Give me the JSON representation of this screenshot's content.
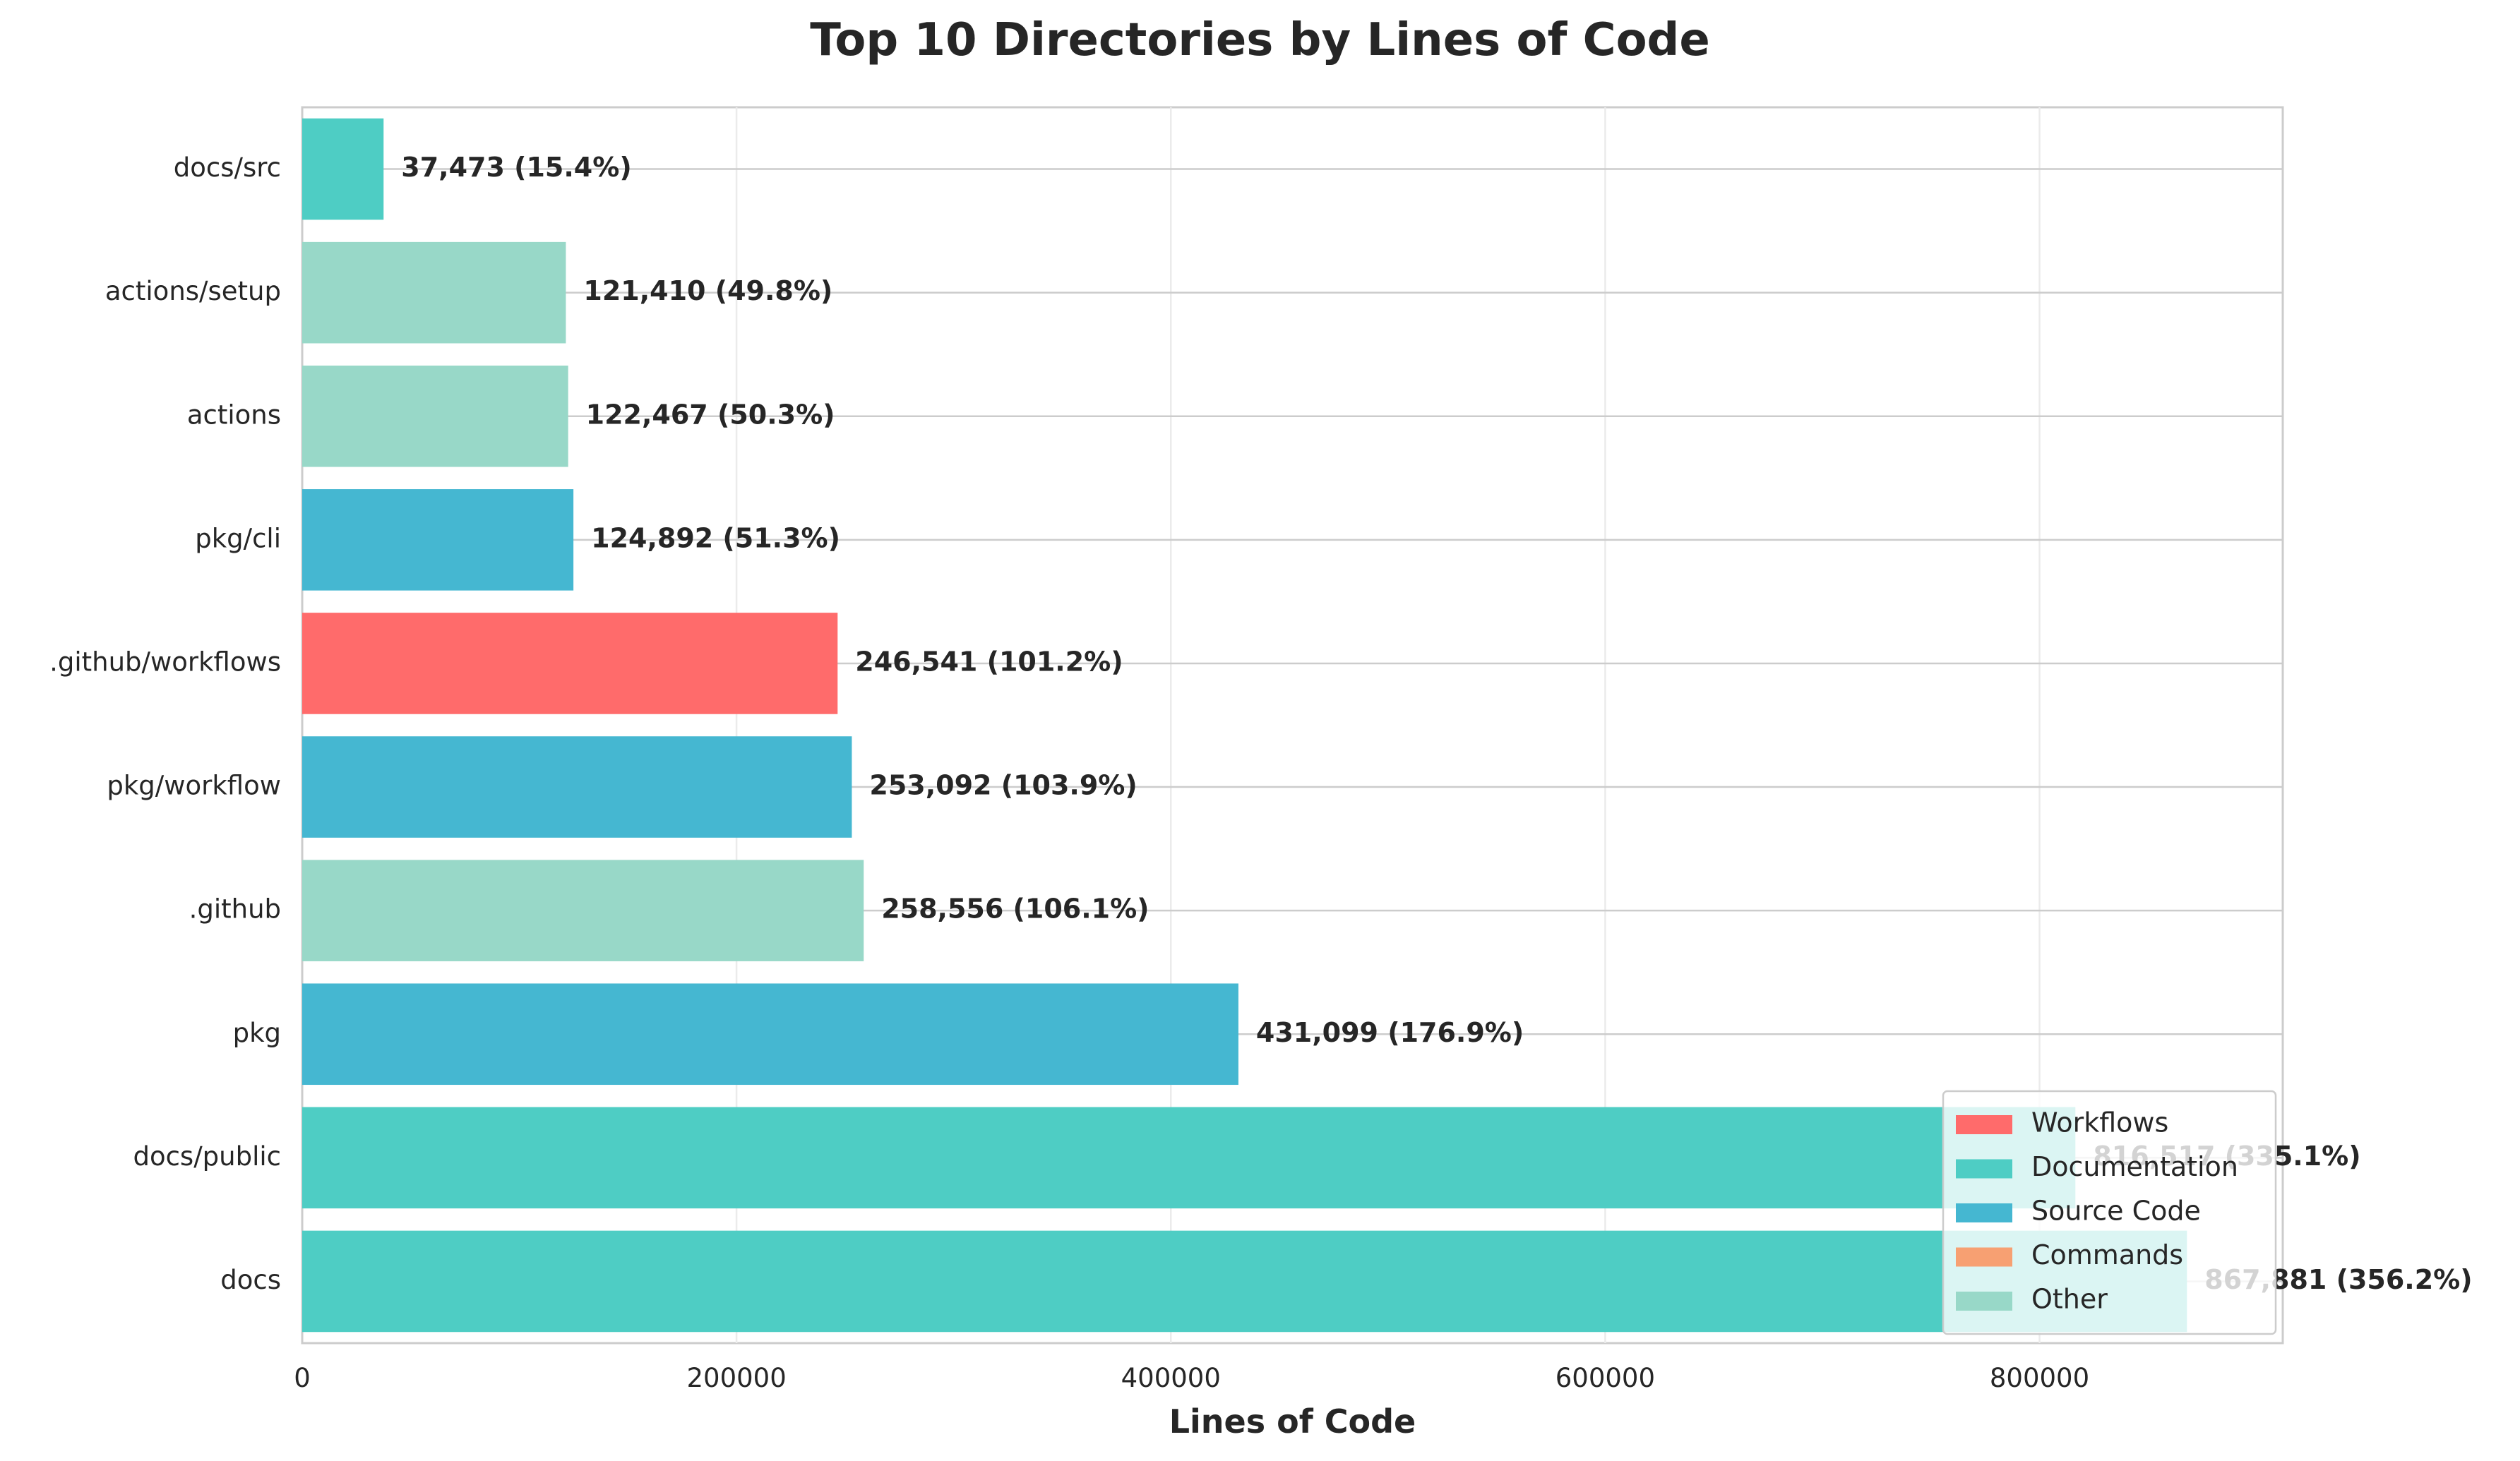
{
  "chart_data": {
    "type": "bar",
    "orientation": "horizontal",
    "title": "Top 10 Directories by Lines of Code",
    "xlabel": "Lines of Code",
    "ylabel": "",
    "xlim": [
      0,
      912000
    ],
    "xticks": [
      0,
      200000,
      400000,
      600000,
      800000
    ],
    "xtick_labels": [
      "0",
      "200000",
      "400000",
      "600000",
      "800000"
    ],
    "grid": true,
    "legend_position": "bottom-right",
    "categories": [
      "docs",
      "docs/public",
      "pkg",
      ".github",
      "pkg/workflow",
      ".github/workflows",
      "pkg/cli",
      "actions",
      "actions/setup",
      "docs/src"
    ],
    "values": [
      867881,
      816517,
      431099,
      258556,
      253092,
      246541,
      124892,
      122467,
      121410,
      37473
    ],
    "bar_categories": [
      "Documentation",
      "Documentation",
      "Source Code",
      "Other",
      "Source Code",
      "Workflows",
      "Source Code",
      "Other",
      "Other",
      "Documentation"
    ],
    "bar_labels": [
      "867,881 (356.2%)",
      "816,517 (335.1%)",
      "431,099 (176.9%)",
      "258,556 (106.1%)",
      "253,092 (103.9%)",
      "246,541 (101.2%)",
      "124,892 (51.3%)",
      "122,467 (50.3%)",
      "121,410 (49.8%)",
      "37,473 (15.4%)"
    ],
    "legend": [
      {
        "name": "Workflows",
        "color": "#ff6b6b"
      },
      {
        "name": "Documentation",
        "color": "#4ecdc4"
      },
      {
        "name": "Source Code",
        "color": "#45b7d1"
      },
      {
        "name": "Commands",
        "color": "#f7a072"
      },
      {
        "name": "Other",
        "color": "#98d8c8"
      }
    ]
  }
}
